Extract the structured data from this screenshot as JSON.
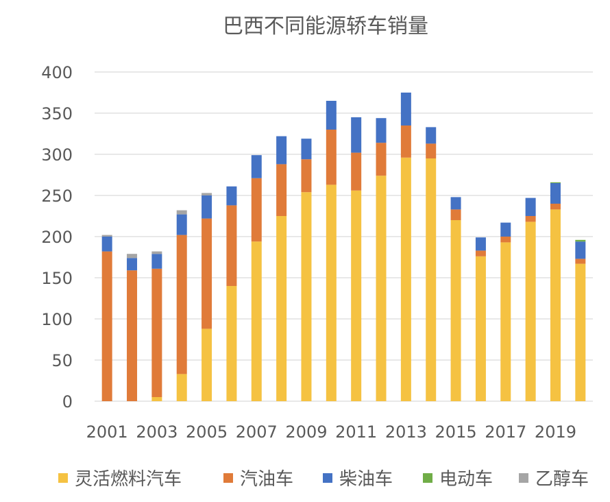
{
  "chart_data": {
    "type": "bar",
    "stacked": true,
    "title": "巴西不同能源轿车销量",
    "xlabel": "",
    "ylabel": "",
    "ylim": [
      0,
      400
    ],
    "yticks": [
      "0",
      "50",
      "100",
      "150",
      "200",
      "250",
      "300",
      "350",
      "400"
    ],
    "grid": true,
    "legend_position": "bottom",
    "categories": [
      "2001",
      "2002",
      "2003",
      "2004",
      "2005",
      "2006",
      "2007",
      "2008",
      "2009",
      "2010",
      "2011",
      "2012",
      "2013",
      "2014",
      "2015",
      "2016",
      "2017",
      "2018",
      "2019",
      "2020"
    ],
    "x_tick_labels": [
      "2001",
      "2003",
      "2005",
      "2007",
      "2009",
      "2011",
      "2013",
      "2015",
      "2017",
      "2019"
    ],
    "series": [
      {
        "name": "灵活燃料汽车",
        "color": "#F5C242",
        "values": [
          0,
          0,
          5,
          33,
          88,
          140,
          194,
          225,
          254,
          263,
          256,
          274,
          296,
          295,
          220,
          176,
          193,
          218,
          233,
          167
        ]
      },
      {
        "name": "汽油车",
        "color": "#E07B39",
        "values": [
          182,
          159,
          156,
          169,
          134,
          98,
          77,
          63,
          40,
          67,
          46,
          40,
          39,
          18,
          13,
          7,
          7,
          7,
          7,
          6
        ]
      },
      {
        "name": "柴油车",
        "color": "#4472C4",
        "values": [
          18,
          15,
          18,
          25,
          28,
          23,
          28,
          34,
          25,
          35,
          43,
          30,
          40,
          20,
          15,
          16,
          17,
          22,
          25,
          21
        ]
      },
      {
        "name": "电动车",
        "color": "#70AD47",
        "values": [
          0,
          0,
          0,
          0,
          0,
          0,
          0,
          0,
          0,
          0,
          0,
          0,
          0,
          0,
          0,
          0,
          0,
          0,
          1,
          2
        ]
      },
      {
        "name": "乙醇车",
        "color": "#A5A5A5",
        "values": [
          2,
          5,
          3,
          5,
          3,
          0,
          0,
          0,
          0,
          0,
          0,
          0,
          0,
          0,
          0,
          0,
          0,
          0,
          0,
          0
        ]
      }
    ]
  }
}
